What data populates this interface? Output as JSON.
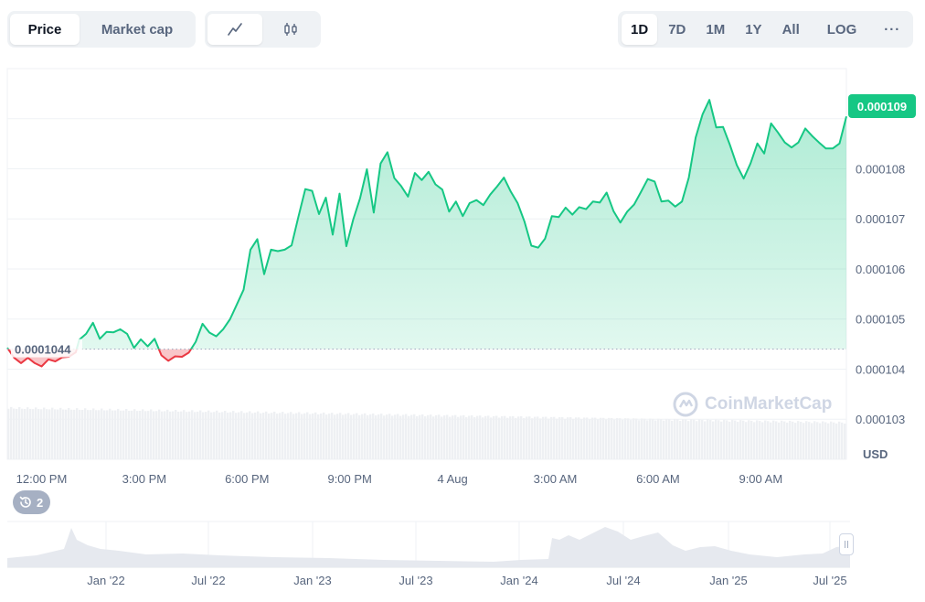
{
  "toolbar": {
    "price_label": "Price",
    "market_cap_label": "Market cap",
    "line_icon": "line-chart-icon",
    "candle_icon": "candlestick-icon",
    "ranges": [
      "1D",
      "7D",
      "1M",
      "1Y",
      "All"
    ],
    "active_range": "1D",
    "log_label": "LOG",
    "more_label": "···"
  },
  "current_price": "0.000109",
  "history_count": "2",
  "brand_name": "CoinMarketCap",
  "colors": {
    "up": "#16c784",
    "down": "#ea3943",
    "grid": "#eff2f5",
    "text": "#58667e",
    "volume": "#eef0f3"
  },
  "chart_data": {
    "type": "line",
    "currency_label": "USD",
    "baseline": 0.0001044,
    "baseline_label": "0.0001044",
    "yticks": [
      0.000103,
      0.000104,
      0.000105,
      0.000106,
      0.000107,
      0.000108
    ],
    "ylabels": [
      "0.000103",
      "0.000104",
      "0.000105",
      "0.000106",
      "0.000107",
      "0.000108"
    ],
    "ylim": [
      0.0001022,
      0.00011
    ],
    "x_tick_labels": [
      "12:00 PM",
      "3:00 PM",
      "6:00 PM",
      "9:00 PM",
      "4 Aug",
      "3:00 AM",
      "6:00 AM",
      "9:00 AM"
    ],
    "x_tick_hours": [
      0,
      3,
      6,
      9,
      12,
      15,
      18,
      21
    ],
    "xlim_hours": [
      -1,
      23.5
    ],
    "series": [
      {
        "points": [
          [
            -1.0,
            1.04425
          ],
          [
            -0.8,
            1.04225
          ],
          [
            -0.6,
            1.0412
          ],
          [
            -0.4,
            1.04225
          ],
          [
            -0.2,
            1.0412
          ],
          [
            0,
            1.04055
          ],
          [
            0.2,
            1.04195
          ],
          [
            0.4,
            1.04155
          ],
          [
            0.6,
            1.04235
          ],
          [
            0.8,
            1.04245
          ],
          [
            1.0,
            1.04335
          ],
          [
            1.1,
            1.04585
          ],
          [
            1.3,
            1.04705
          ],
          [
            1.5,
            1.04925
          ],
          [
            1.7,
            1.04605
          ],
          [
            1.9,
            1.04745
          ],
          [
            2.1,
            1.04735
          ],
          [
            2.3,
            1.04795
          ],
          [
            2.5,
            1.04705
          ],
          [
            2.7,
            1.04425
          ],
          [
            2.9,
            1.04595
          ],
          [
            3.1,
            1.04455
          ],
          [
            3.3,
            1.04605
          ],
          [
            3.5,
            1.04275
          ],
          [
            3.7,
            1.04165
          ],
          [
            3.9,
            1.04255
          ],
          [
            4.1,
            1.04245
          ],
          [
            4.3,
            1.0433
          ],
          [
            4.5,
            1.04545
          ],
          [
            4.7,
            1.04905
          ],
          [
            4.9,
            1.0473
          ],
          [
            5.1,
            1.04655
          ],
          [
            5.3,
            1.04795
          ],
          [
            5.5,
            1.04995
          ],
          [
            5.7,
            1.05285
          ],
          [
            5.9,
            1.05585
          ],
          [
            6.1,
            1.06385
          ],
          [
            6.3,
            1.06595
          ],
          [
            6.5,
            1.05895
          ],
          [
            6.7,
            1.06385
          ],
          [
            6.9,
            1.06355
          ],
          [
            7.1,
            1.06385
          ],
          [
            7.3,
            1.0647
          ],
          [
            7.5,
            1.07045
          ],
          [
            7.7,
            1.07595
          ],
          [
            7.9,
            1.0756
          ],
          [
            8.1,
            1.07095
          ],
          [
            8.3,
            1.07425
          ],
          [
            8.5,
            1.06685
          ],
          [
            8.7,
            1.07505
          ],
          [
            8.9,
            1.06455
          ],
          [
            9.1,
            1.06985
          ],
          [
            9.3,
            1.0741
          ],
          [
            9.5,
            1.0799
          ],
          [
            9.7,
            1.07125
          ],
          [
            9.9,
            1.08105
          ],
          [
            10.1,
            1.0833
          ],
          [
            10.3,
            1.07815
          ],
          [
            10.5,
            1.07655
          ],
          [
            10.7,
            1.07445
          ],
          [
            10.9,
            1.07915
          ],
          [
            11.1,
            1.07775
          ],
          [
            11.3,
            1.0794
          ],
          [
            11.5,
            1.0769
          ],
          [
            11.7,
            1.07585
          ],
          [
            11.9,
            1.07145
          ],
          [
            12.1,
            1.07345
          ],
          [
            12.3,
            1.07055
          ],
          [
            12.5,
            1.07315
          ],
          [
            12.7,
            1.07375
          ],
          [
            12.9,
            1.07275
          ],
          [
            13.1,
            1.07485
          ],
          [
            13.3,
            1.07645
          ],
          [
            13.5,
            1.07825
          ],
          [
            13.7,
            1.07545
          ],
          [
            13.9,
            1.07315
          ],
          [
            14.1,
            1.06945
          ],
          [
            14.3,
            1.06465
          ],
          [
            14.5,
            1.06425
          ],
          [
            14.7,
            1.06605
          ],
          [
            14.9,
            1.07055
          ],
          [
            15.1,
            1.07035
          ],
          [
            15.3,
            1.07225
          ],
          [
            15.5,
            1.07085
          ],
          [
            15.7,
            1.07235
          ],
          [
            15.9,
            1.07195
          ],
          [
            16.1,
            1.07345
          ],
          [
            16.3,
            1.07325
          ],
          [
            16.5,
            1.07525
          ],
          [
            16.7,
            1.07155
          ],
          [
            16.9,
            1.06925
          ],
          [
            17.1,
            1.07145
          ],
          [
            17.3,
            1.07285
          ],
          [
            17.5,
            1.07535
          ],
          [
            17.7,
            1.07795
          ],
          [
            17.9,
            1.07745
          ],
          [
            18.1,
            1.07345
          ],
          [
            18.3,
            1.07365
          ],
          [
            18.5,
            1.07245
          ],
          [
            18.7,
            1.07345
          ],
          [
            18.9,
            1.07825
          ],
          [
            19.1,
            1.08625
          ],
          [
            19.3,
            1.09085
          ],
          [
            19.5,
            1.09375
          ],
          [
            19.7,
            1.08825
          ],
          [
            19.9,
            1.08835
          ],
          [
            20.1,
            1.08475
          ],
          [
            20.3,
            1.08075
          ],
          [
            20.5,
            1.07805
          ],
          [
            20.7,
            1.08105
          ],
          [
            20.9,
            1.08505
          ],
          [
            21.1,
            1.08305
          ],
          [
            21.3,
            1.08905
          ],
          [
            21.5,
            1.08725
          ],
          [
            21.7,
            1.08525
          ],
          [
            21.9,
            1.08425
          ],
          [
            22.1,
            1.08525
          ],
          [
            22.3,
            1.08805
          ],
          [
            22.5,
            1.08655
          ],
          [
            22.7,
            1.08525
          ],
          [
            22.9,
            1.08405
          ],
          [
            23.1,
            1.08405
          ],
          [
            23.3,
            1.08505
          ],
          [
            23.5,
            1.09045
          ]
        ]
      }
    ],
    "navigator": {
      "x_labels": [
        "Jan '22",
        "Jul '22",
        "Jan '23",
        "Jul '23",
        "Jan '24",
        "Jul '24",
        "Jan '25",
        "Jul '25"
      ]
    }
  }
}
